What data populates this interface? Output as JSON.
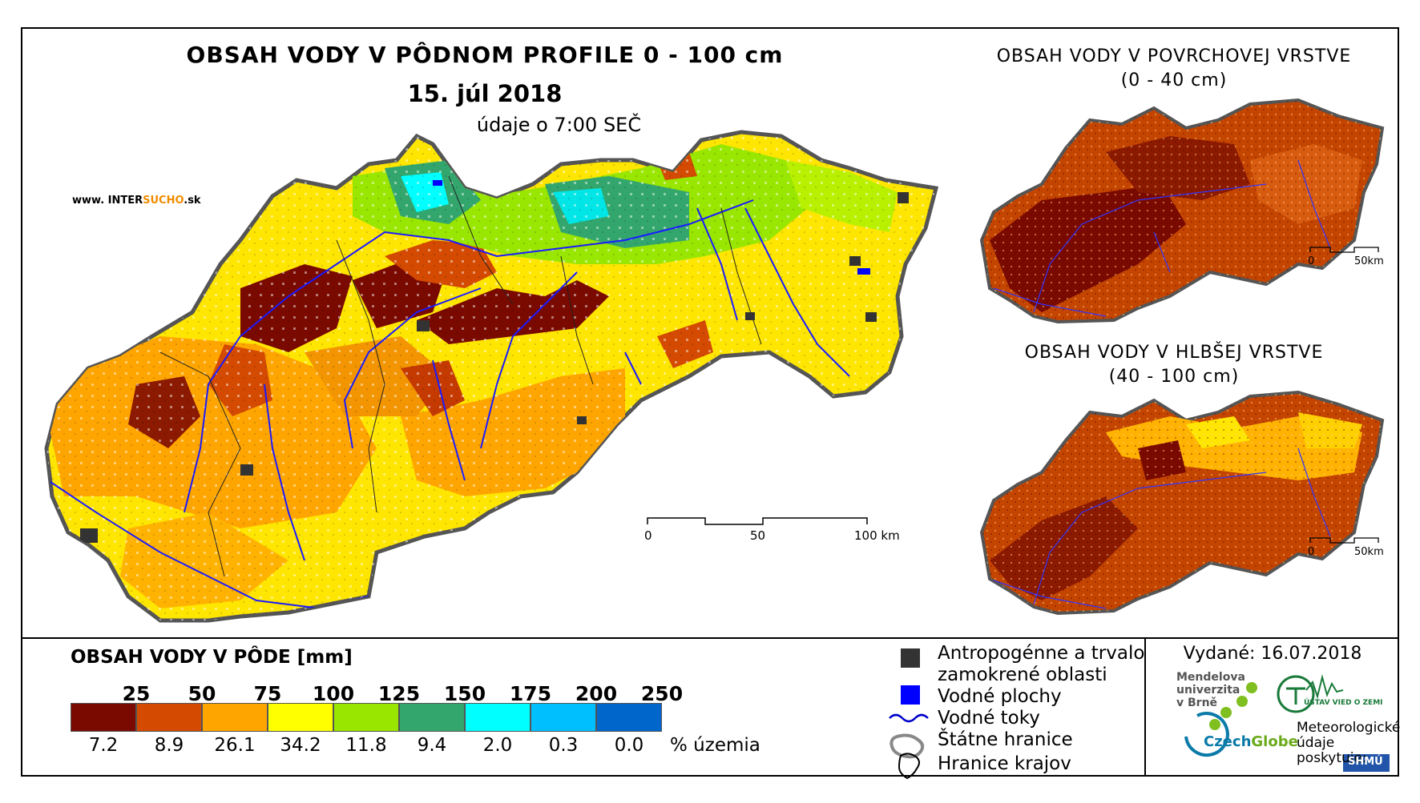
{
  "main_map": {
    "title": "OBSAH VODY V PÔDNOM PROFILE 0 - 100 cm",
    "date": "15. júl 2018",
    "time": "údaje o 7:00 SEČ",
    "website_prefix": "www. INTER",
    "website_brand": "SUCHO",
    "website_suffix": ".sk",
    "scale": {
      "labels": [
        "0",
        "50",
        "100 km"
      ]
    }
  },
  "surface_map": {
    "title_line1": "OBSAH VODY V POVRCHOVEJ VRSTVE",
    "title_line2": "(0 - 40 cm)",
    "scale": {
      "labels": [
        "0",
        "50km"
      ]
    }
  },
  "deep_map": {
    "title_line1": "OBSAH VODY V HLBŠEJ VRSTVE",
    "title_line2": "(40 - 100 cm)",
    "scale": {
      "labels": [
        "0",
        "50km"
      ]
    }
  },
  "legend": {
    "title": "OBSAH VODY V PÔDE [mm]",
    "unit_label": "% územia",
    "classes": [
      {
        "bound": "25",
        "color": "#7a0a00",
        "percent": "7.2"
      },
      {
        "bound": "50",
        "color": "#d34a00",
        "percent": "8.9"
      },
      {
        "bound": "75",
        "color": "#ffa500",
        "percent": "26.1"
      },
      {
        "bound": "100",
        "color": "#ffff00",
        "percent": "34.2"
      },
      {
        "bound": "125",
        "color": "#99e600",
        "percent": "11.8"
      },
      {
        "bound": "150",
        "color": "#33a66e",
        "percent": "9.4"
      },
      {
        "bound": "175",
        "color": "#00ffff",
        "percent": "2.0"
      },
      {
        "bound": "200",
        "color": "#00bfff",
        "percent": "0.3"
      },
      {
        "bound": "250",
        "color": "#0066cc",
        "percent": "0.0"
      }
    ],
    "symbols": [
      {
        "label": "Antropogénne a trvalo",
        "label2": "zamokrené oblasti",
        "icon": "dark-square-icon",
        "color": "#333333"
      },
      {
        "label": "Vodné plochy",
        "icon": "blue-square-icon",
        "color": "#0000ff"
      },
      {
        "label": "Vodné toky",
        "icon": "river-line-icon",
        "color": "#0000cc"
      },
      {
        "label": "Štátne hranice",
        "icon": "state-border-icon",
        "color": "#888888"
      },
      {
        "label": "Hranice krajov",
        "icon": "region-border-icon",
        "color": "#000000"
      }
    ]
  },
  "footer": {
    "issued": "Vydané: 16.07.2018",
    "mendel": [
      "Mendelova",
      "univerzita",
      "v Brně"
    ],
    "czechglobe_a": "Czech",
    "czechglobe_b": "Globe",
    "uvgz": "ÚSTAV VIED O ZEMI",
    "meteo": [
      "Meteorologické",
      "údaje",
      "poskytuje:"
    ],
    "shmu": "SHMÚ"
  }
}
